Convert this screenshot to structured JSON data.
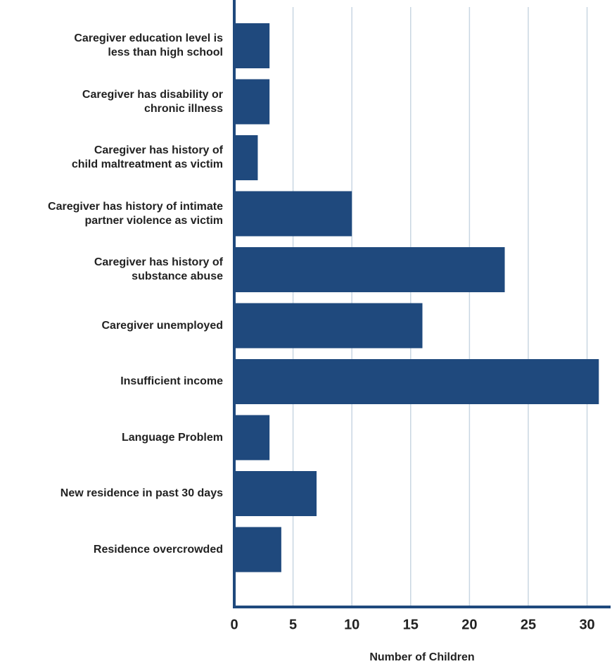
{
  "chart_data": {
    "type": "bar",
    "orientation": "horizontal",
    "x_label": "Number of Children",
    "categories": [
      "Caregiver education level is\nless than high school",
      "Caregiver has disability or\nchronic illness",
      "Caregiver has history of\nchild maltreatment as victim",
      "Caregiver has history of intimate\npartner violence as victim",
      "Caregiver has history of\nsubstance abuse",
      "Caregiver unemployed",
      "Insufficient income",
      "Language Problem",
      "New residence in past 30 days",
      "Residence overcrowded"
    ],
    "values": [
      3,
      3,
      2,
      10,
      23,
      16,
      31,
      3,
      7,
      4
    ],
    "color": "#1f497d",
    "xlim": [
      0,
      32
    ],
    "xticks": [
      0,
      5,
      10,
      15,
      20,
      25,
      30
    ],
    "grid": true
  }
}
